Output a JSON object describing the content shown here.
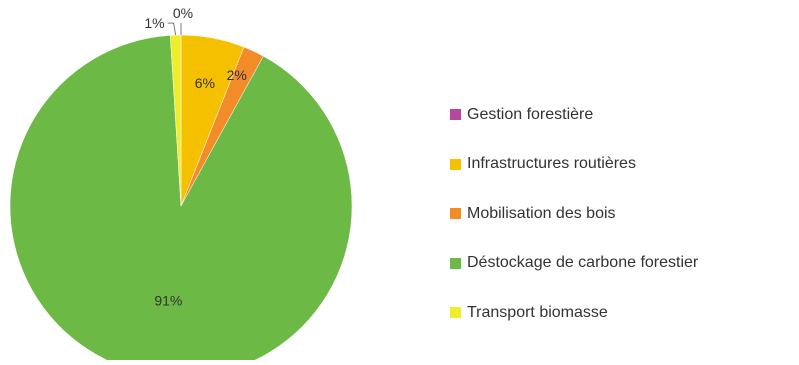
{
  "chart_data": {
    "type": "pie",
    "title": "",
    "categories": [
      "Gestion forestière",
      "Infrastructures routières",
      "Mobilisation des bois",
      "Déstockage de carbone forestier",
      "Transport biomasse"
    ],
    "values": [
      0,
      6,
      2,
      91,
      1
    ],
    "labels": [
      "0%",
      "6%",
      "2%",
      "91%",
      "1%"
    ],
    "colors": [
      "#b5479e",
      "#f5c000",
      "#f28c28",
      "#6cb945",
      "#f0ee2a"
    ],
    "legend_position": "right"
  }
}
